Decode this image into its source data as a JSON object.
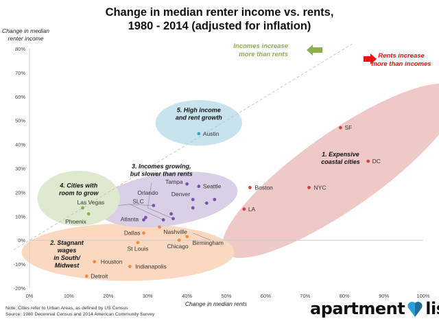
{
  "title": {
    "line1": "Change in median renter income vs. rents,",
    "line2": "1980 - 2014 (adjusted for inflation)"
  },
  "y_axis_label": {
    "line1": "Change in median",
    "line2": "renter income"
  },
  "x_axis_label": "Change in median rents",
  "legend": {
    "incomes": {
      "line1": "Incomes increase",
      "line2": "more than rents",
      "color": "#8cb050"
    },
    "rents": {
      "line1": "Rents increase",
      "line2": "more than incomes",
      "color": "#ee1111"
    }
  },
  "note": {
    "line1": "Note: Cities refer to Urban Areas, as defined by US Census",
    "line2": "Source: 1980 Decennial Census and 2014 American Community Survey"
  },
  "logo": {
    "left": "apartment",
    "right": "list"
  },
  "chart_data": {
    "type": "scatter",
    "title": "Change in median renter income vs. rents, 1980 - 2014 (adjusted for inflation)",
    "xlabel": "Change in median rents",
    "ylabel": "Change in median renter income",
    "xlim": [
      0,
      100
    ],
    "ylim": [
      -20,
      80
    ],
    "x_ticks": [
      "0%",
      "10%",
      "20%",
      "30%",
      "40%",
      "50%",
      "60%",
      "70%",
      "80%",
      "90%",
      "100%"
    ],
    "y_ticks": [
      "80%",
      "70%",
      "60%",
      "50%",
      "40%",
      "30%",
      "20%",
      "10%",
      "0%",
      "-10%",
      "-20%"
    ],
    "reference_line": "y = x (dashed gray)",
    "groups": [
      {
        "name": "1. Expensive coastal cities",
        "label_line1": "1. Expensive",
        "label_line2": "coastal cities",
        "color": "#d04444",
        "fill": "#efc8c8",
        "points": [
          {
            "city": "SF",
            "x": 79,
            "y": 47
          },
          {
            "city": "DC",
            "x": 86,
            "y": 33
          },
          {
            "city": "Boston",
            "x": 56,
            "y": 22
          },
          {
            "city": "NYC",
            "x": 71,
            "y": 22
          },
          {
            "city": "LA",
            "x": 54.5,
            "y": 13
          }
        ]
      },
      {
        "name": "2. Stagnant wages in South/Midwest",
        "label_line1": "2. Stagnant",
        "label_line2": "wages",
        "label_line3": "in South/",
        "label_line4": "Midwest",
        "color": "#f08c3c",
        "fill": "#fbd9c1",
        "points": [
          {
            "city": "Dallas",
            "x": 29,
            "y": 3
          },
          {
            "city": "Nashville",
            "x": 33,
            "y": 5.5
          },
          {
            "city": "St Louis",
            "x": 27.5,
            "y": -1
          },
          {
            "city": "Chicago",
            "x": 38,
            "y": 0
          },
          {
            "city": "Birmingham",
            "x": 40,
            "y": 1.5
          },
          {
            "city": "Houston",
            "x": 16.5,
            "y": -9
          },
          {
            "city": "Indianapolis",
            "x": 25.5,
            "y": -11
          },
          {
            "city": "Detroit",
            "x": 14.5,
            "y": -15
          }
        ]
      },
      {
        "name": "3. Incomes growing, but slower than rents",
        "label_line1": "3. Incomes growing,",
        "label_line2": "but slower than rents",
        "color": "#7a52a8",
        "fill": "#d9cfe6",
        "points": [
          {
            "city": "Tampa",
            "x": 40,
            "y": 23.5
          },
          {
            "city": "Seattle",
            "x": 43,
            "y": 22.5
          },
          {
            "city": "Denver",
            "x": 41.5,
            "y": 17
          },
          {
            "city": "Orlando",
            "x": 36,
            "y": 11
          },
          {
            "city": "SLC",
            "x": 31.5,
            "y": 14.5
          },
          {
            "city": "Atlanta",
            "x": 34,
            "y": 8.5
          },
          {
            "city": "",
            "x": 29.5,
            "y": 9.5
          },
          {
            "city": "",
            "x": 29,
            "y": 8.5
          },
          {
            "city": "",
            "x": 36.5,
            "y": 9
          },
          {
            "city": "",
            "x": 41.5,
            "y": 13.5
          },
          {
            "city": "",
            "x": 45,
            "y": 15.5
          },
          {
            "city": "",
            "x": 47,
            "y": 17
          }
        ]
      },
      {
        "name": "4. Cities with room to grow",
        "label_line1": "4. Cities with",
        "label_line2": "room to grow",
        "color": "#8cb050",
        "fill": "#dfe9cf",
        "points": [
          {
            "city": "Las Vegas",
            "x": 13.5,
            "y": 13.5
          },
          {
            "city": "Phoenix",
            "x": 15,
            "y": 11
          }
        ]
      },
      {
        "name": "5. High income and rent growth",
        "label_line1": "5. High income",
        "label_line2": "and rent growth",
        "color": "#3aa8c8",
        "fill": "#c7e4ee",
        "points": [
          {
            "city": "Austin",
            "x": 43,
            "y": 44.5
          }
        ]
      }
    ]
  }
}
